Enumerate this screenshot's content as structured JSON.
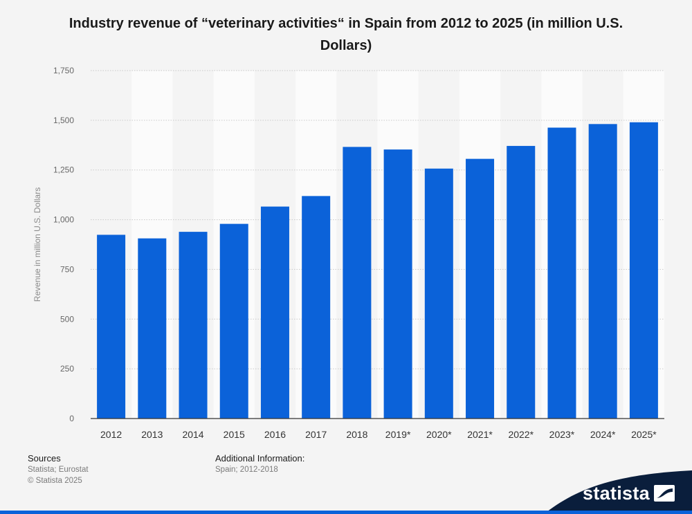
{
  "chart_data": {
    "type": "bar",
    "title": "Industry revenue of “veterinary activities“ in Spain from 2012 to 2025 (in million U.S. Dollars)",
    "ylabel": "Revenue in million U.S. Dollars",
    "xlabel": "",
    "categories": [
      "2012",
      "2013",
      "2014",
      "2015",
      "2016",
      "2017",
      "2018",
      "2019*",
      "2020*",
      "2021*",
      "2022*",
      "2023*",
      "2024*",
      "2025*"
    ],
    "values": [
      924,
      906,
      939,
      979,
      1066,
      1119,
      1366,
      1353,
      1257,
      1306,
      1371,
      1463,
      1481,
      1490
    ],
    "ylim": [
      0,
      1750
    ],
    "yticks": [
      0,
      250,
      500,
      750,
      1000,
      1250,
      1500,
      1750
    ],
    "ytick_labels": [
      "0",
      "250",
      "500",
      "750",
      "1,000",
      "1,250",
      "1,500",
      "1,750"
    ],
    "bar_color": "#0b62d9",
    "grid": true,
    "legend": "none"
  },
  "footer": {
    "sources_heading": "Sources",
    "sources_text": "Statista; Eurostat",
    "copyright": "© Statista 2025",
    "additional_heading": "Additional Information:",
    "additional_text": "Spain; 2012-2018"
  },
  "brand": {
    "name": "statista",
    "band_color": "#0a1e3c"
  }
}
